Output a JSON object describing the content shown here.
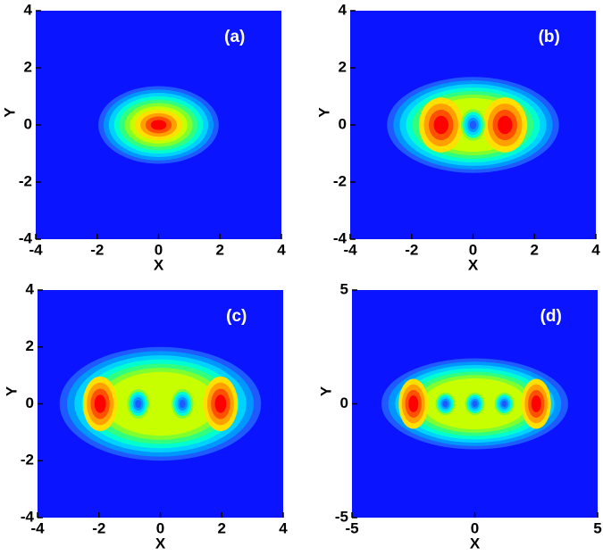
{
  "chart_data": [
    {
      "type": "contour",
      "label": "(a)",
      "xlabel": "X",
      "ylabel": "Y",
      "xlim": [
        -4,
        4
      ],
      "ylim": [
        -4,
        4
      ],
      "xticks": [
        -4,
        -2,
        0,
        2,
        4
      ],
      "yticks": [
        -4,
        -2,
        0,
        2,
        4
      ]
    },
    {
      "type": "contour",
      "label": "(b)",
      "xlabel": "X",
      "ylabel": "Y",
      "xlim": [
        -4,
        4
      ],
      "ylim": [
        -4,
        4
      ],
      "xticks": [
        -4,
        -2,
        0,
        2,
        4
      ],
      "yticks": [
        -4,
        -2,
        0,
        2,
        4
      ]
    },
    {
      "type": "contour",
      "label": "(c)",
      "xlabel": "X",
      "ylabel": "Y",
      "xlim": [
        -4,
        4
      ],
      "ylim": [
        -4,
        4
      ],
      "xticks": [
        -4,
        -2,
        0,
        2,
        4
      ],
      "yticks": [
        -4,
        -2,
        0,
        2,
        4
      ]
    },
    {
      "type": "contour",
      "label": "(d)",
      "xlabel": "X",
      "ylabel": "Y",
      "xlim": [
        -5,
        5
      ],
      "ylim": [
        -5,
        5
      ],
      "xticks": [
        -5,
        0,
        5
      ],
      "yticks": [
        -5,
        0,
        5
      ]
    }
  ]
}
